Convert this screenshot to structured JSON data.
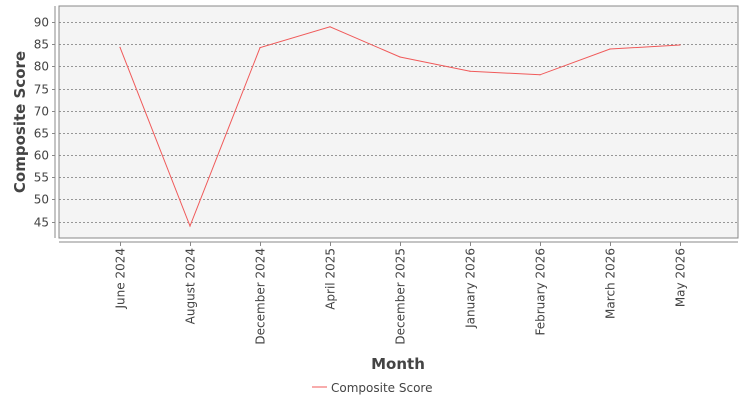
{
  "chart_data": {
    "type": "line",
    "xlabel": "Month",
    "ylabel": "Composite Score",
    "categories": [
      "June 2024",
      "August 2024",
      "December 2024",
      "April 2025",
      "December 2025",
      "January 2026",
      "February 2026",
      "March 2026",
      "May 2026"
    ],
    "series": [
      {
        "name": "Composite Score",
        "color": "#f05a5a",
        "values": [
          84.3,
          44.0,
          84.2,
          88.9,
          82.1,
          78.9,
          78.1,
          83.9,
          84.8
        ]
      }
    ],
    "yticks": [
      45,
      50,
      55,
      60,
      65,
      70,
      75,
      80,
      85,
      90
    ],
    "ylim": [
      41.3,
      93.6
    ],
    "grid": true,
    "legend_position": "bottom-center"
  }
}
